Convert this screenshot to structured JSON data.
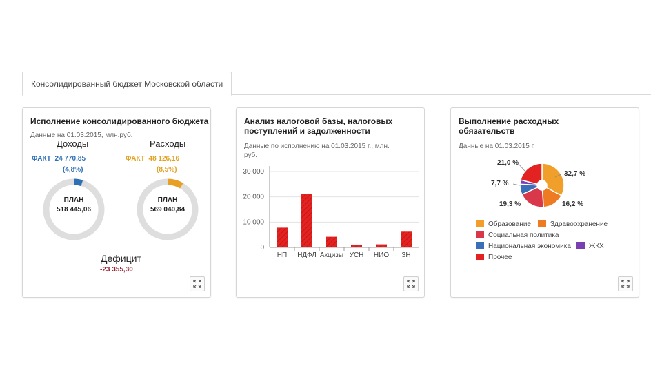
{
  "tab": {
    "label": "Консолидированный бюджет Московской области"
  },
  "card1": {
    "title": "Исполнение консолидированного бюджета",
    "subtitle": "Данные на 01.03.2015, млн.руб.",
    "income": {
      "heading": "Доходы",
      "fact_label": "ФАКТ",
      "fact_value": "24 770,85",
      "percent": "(4,8%)",
      "plan_label": "ПЛАН",
      "plan_value": "518 445,06",
      "fraction": 0.048
    },
    "expense": {
      "heading": "Расходы",
      "fact_label": "ФАКТ",
      "fact_value": "48 126,16",
      "percent": "(8,5%)",
      "plan_label": "ПЛАН",
      "plan_value": "569 040,84",
      "fraction": 0.085
    },
    "deficit_label": "Дефицит",
    "deficit_value": "-23 355,30"
  },
  "card2": {
    "title_line1": "Анализ налоговой базы, налоговых",
    "title_line2": "поступлений и задолженности",
    "subtitle_line1": "Данные по исполнению на 01.03.2015 г., млн.",
    "subtitle_line2": "руб."
  },
  "card3": {
    "title_line1": "Выполнение расходных",
    "title_line2": "обязательств",
    "subtitle": "Данные на 01.03.2015 г.",
    "legend": [
      {
        "name": "Образование",
        "color": "#f0a02a"
      },
      {
        "name": "Здравоохранение",
        "color": "#ee7a22"
      },
      {
        "name": "Социальная политика",
        "color": "#d9374a"
      },
      {
        "name": "Национальная экономика",
        "color": "#3a6fb8"
      },
      {
        "name": "ЖКХ",
        "color": "#7a3fb0"
      },
      {
        "name": "Прочее",
        "color": "#e32222"
      }
    ]
  },
  "chart_data": [
    {
      "type": "bar",
      "categories": [
        "НП",
        "НДФЛ",
        "Акцизы",
        "УСН",
        "НИО",
        "ЗН"
      ],
      "values": [
        7800,
        21000,
        4200,
        1100,
        1200,
        6200
      ],
      "ylim": [
        0,
        30000
      ],
      "yticks": [
        "0",
        "10 000",
        "20 000",
        "30 000"
      ],
      "ytick_values": [
        0,
        10000,
        20000,
        30000
      ],
      "color": "#e32222",
      "grid": true
    },
    {
      "type": "pie",
      "donut": true,
      "slices": [
        {
          "name": "Образование",
          "value": 32.7,
          "label": "32,7 %",
          "color": "#f0a02a"
        },
        {
          "name": "Здравоохранение",
          "value": 16.2,
          "label": "16,2 %",
          "color": "#ee7a22"
        },
        {
          "name": "Социальная политика",
          "value": 19.3,
          "label": "19,3 %",
          "color": "#d9374a"
        },
        {
          "name": "Национальная экономика",
          "value": 7.7,
          "label": "7,7 %",
          "color": "#3a6fb8"
        },
        {
          "name": "ЖКХ",
          "value": 3.1,
          "label": "",
          "color": "#7a3fb0"
        },
        {
          "name": "Прочее",
          "value": 21.0,
          "label": "21,0 %",
          "color": "#e32222"
        }
      ]
    }
  ]
}
